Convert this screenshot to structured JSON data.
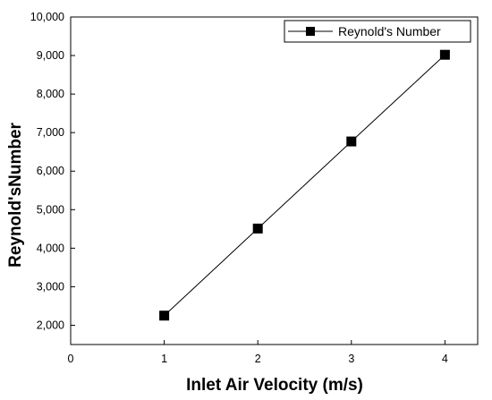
{
  "chart_data": {
    "type": "line",
    "title": "",
    "xlabel": "Inlet Air Velocity (m/s)",
    "ylabel": "Reynold'sNumber",
    "xlim": [
      0,
      4.35
    ],
    "ylim": [
      1500,
      10000
    ],
    "xticks": [
      0,
      1,
      2,
      3,
      4
    ],
    "xtick_labels": [
      "0",
      "1",
      "2",
      "3",
      "4"
    ],
    "yticks": [
      2000,
      3000,
      4000,
      5000,
      6000,
      7000,
      8000,
      9000,
      10000
    ],
    "ytick_labels": [
      "2,000",
      "3,000",
      "4,000",
      "5,000",
      "6,000",
      "7,000",
      "8,000",
      "9,000",
      "10,000"
    ],
    "grid": false,
    "legend_position": "top-right",
    "series": [
      {
        "name": "Reynold's Number",
        "marker": "square",
        "color": "#000000",
        "x": [
          1,
          2,
          3,
          4
        ],
        "y": [
          2250,
          4510,
          6770,
          9020
        ]
      }
    ]
  }
}
